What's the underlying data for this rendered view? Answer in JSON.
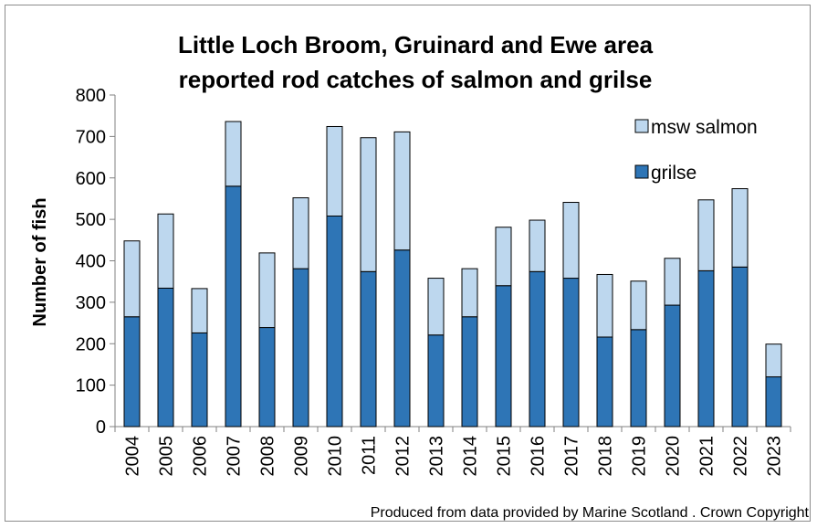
{
  "chart_data": {
    "type": "bar",
    "stacked": true,
    "title_lines": [
      "Little Loch Broom, Gruinard and Ewe area",
      "reported rod catches of salmon and grilse"
    ],
    "xlabel": "",
    "ylabel": "Number of fish",
    "ylim": [
      0,
      800
    ],
    "yticks": [
      0,
      100,
      200,
      300,
      400,
      500,
      600,
      700,
      800
    ],
    "categories": [
      "2004",
      "2005",
      "2006",
      "2007",
      "2008",
      "2009",
      "2010",
      "2011",
      "2012",
      "2013",
      "2014",
      "2015",
      "2016",
      "2017",
      "2018",
      "2019",
      "2020",
      "2021",
      "2022",
      "2023"
    ],
    "series": [
      {
        "name": "grilse",
        "color": "#2e75b6",
        "values": [
          265,
          334,
          226,
          580,
          239,
          381,
          508,
          374,
          426,
          221,
          265,
          340,
          374,
          358,
          216,
          234,
          293,
          376,
          385,
          120
        ]
      },
      {
        "name": "msw salmon",
        "color": "#bdd7ee",
        "values": [
          183,
          179,
          107,
          156,
          180,
          171,
          216,
          323,
          285,
          137,
          116,
          141,
          124,
          183,
          151,
          117,
          113,
          171,
          189,
          79
        ]
      }
    ],
    "legend_position": "top-right",
    "legend_order": [
      "msw salmon",
      "grilse"
    ],
    "grid": false
  },
  "footer": {
    "credit": "Produced from data provided by Marine Scotland . Crown Copyright"
  }
}
